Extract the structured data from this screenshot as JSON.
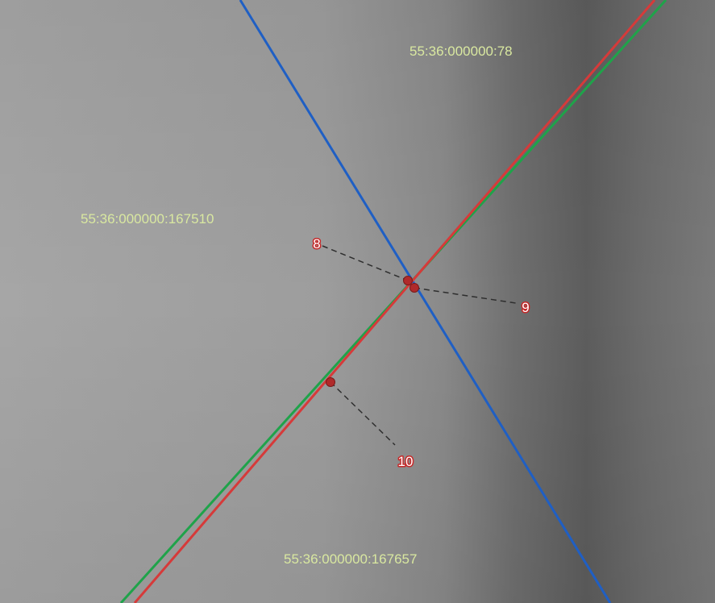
{
  "map": {
    "parcels": [
      {
        "id": "parcel-north",
        "label": "55:36:000000:78"
      },
      {
        "id": "parcel-west",
        "label": "55:36:000000:167510"
      },
      {
        "id": "parcel-south",
        "label": "55:36:000000:167657"
      }
    ],
    "points": [
      {
        "id": "point-8",
        "number": "8"
      },
      {
        "id": "point-9",
        "number": "9"
      },
      {
        "id": "point-10",
        "number": "10"
      }
    ],
    "colors": {
      "boundary_blue": "#1f5fc4",
      "boundary_red": "#d63a3a",
      "boundary_green": "#1fa34a",
      "parcel_label": "#d9e8a0",
      "point_fill": "#b02a2a",
      "point_label_fill": "#ffffff",
      "point_label_stroke": "#c62828",
      "leader_line": "#2e2e2e"
    }
  }
}
